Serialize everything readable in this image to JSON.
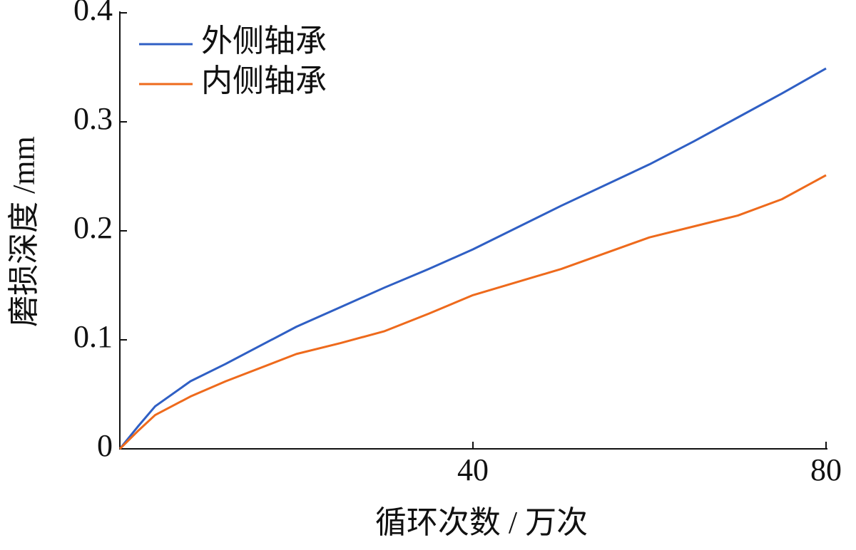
{
  "chart_data": {
    "type": "line",
    "x_label": "循环次数 / 万次",
    "y_label": "磨损深度 /mm",
    "x": [
      0,
      2,
      4,
      8,
      12,
      20,
      25,
      30,
      35,
      40,
      50,
      60,
      65,
      70,
      75,
      80
    ],
    "series": [
      {
        "name": "外侧轴承",
        "color": "#2f5fc4",
        "values": [
          0,
          0.02,
          0.039,
          0.062,
          0.078,
          0.112,
          0.13,
          0.148,
          0.165,
          0.183,
          0.223,
          0.261,
          0.282,
          0.304,
          0.326,
          0.349
        ]
      },
      {
        "name": "内侧轴承",
        "color": "#ee6a1c",
        "values": [
          0,
          0.016,
          0.031,
          0.048,
          0.062,
          0.087,
          0.097,
          0.108,
          0.124,
          0.141,
          0.165,
          0.194,
          0.204,
          0.214,
          0.229,
          0.251
        ]
      }
    ],
    "xlim": [
      0,
      80
    ],
    "xticks": [
      40,
      80
    ],
    "ylim": [
      0,
      0.4
    ],
    "yticks": [
      0,
      0.1,
      0.2,
      0.3,
      0.4
    ],
    "legend": "upper-left"
  }
}
